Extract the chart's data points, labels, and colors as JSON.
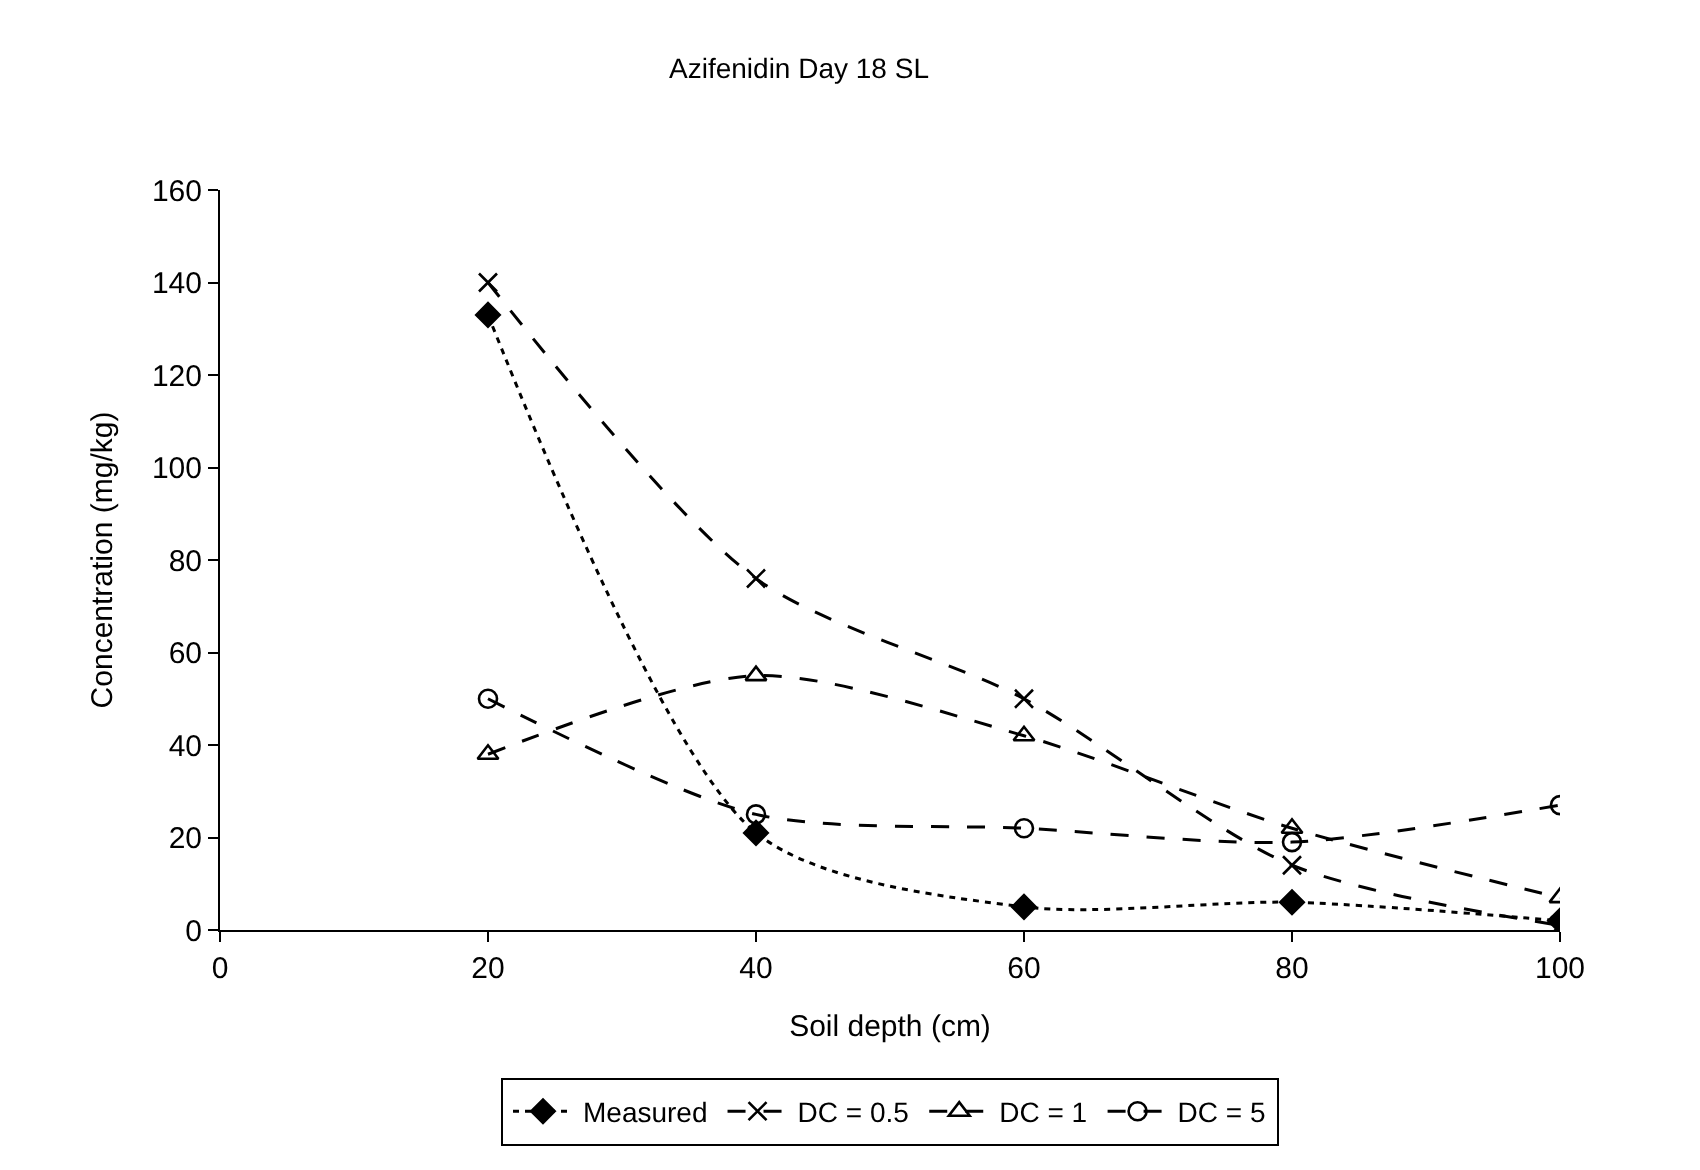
{
  "chart_data": {
    "type": "line",
    "title": "Azifenidin Day 18 SL",
    "xlabel": "Soil depth (cm)",
    "ylabel": "Concentration (mg/kg)",
    "x": [
      20,
      40,
      60,
      80,
      100
    ],
    "series": [
      {
        "name": "Measured",
        "color": "#000000",
        "values": [
          133,
          21,
          5,
          6,
          2
        ],
        "marker": "diamond",
        "line_style": "dotted"
      },
      {
        "name": "DC = 0.5",
        "color": "#000000",
        "values": [
          140,
          76,
          50,
          14,
          1
        ],
        "marker": "cross",
        "line_style": "dashed"
      },
      {
        "name": "DC = 1",
        "color": "#000000",
        "values": [
          38,
          55,
          42,
          22,
          7
        ],
        "marker": "triangle",
        "line_style": "dashed"
      },
      {
        "name": "DC = 5",
        "color": "#000000",
        "values": [
          50,
          25,
          22,
          19,
          27
        ],
        "marker": "circle",
        "line_style": "dashed"
      }
    ],
    "xlim": [
      0,
      100
    ],
    "xticks": [
      0,
      20,
      40,
      60,
      80,
      100
    ],
    "ylim": [
      0,
      160
    ],
    "yticks": [
      0,
      20,
      40,
      60,
      80,
      100,
      120,
      140,
      160
    ],
    "legend": "bottom"
  }
}
